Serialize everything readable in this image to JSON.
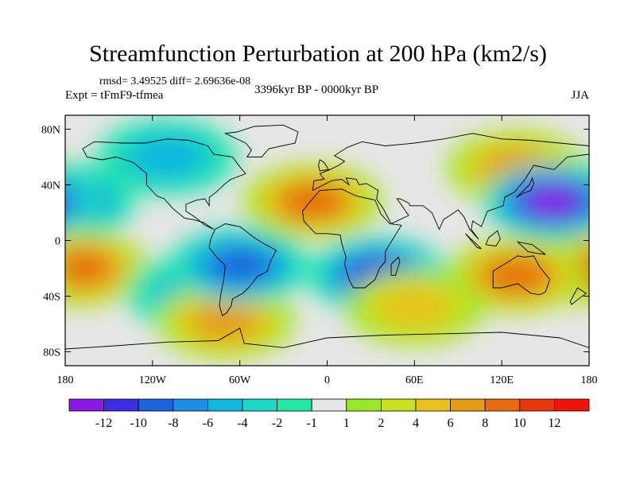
{
  "chart_data": {
    "type": "heatmap",
    "title": "Streamfunction Perturbation at 200 hPa (km2/s)",
    "stats_text": "rmsd= 3.49525 diff= 2.69636e-08",
    "left_label": "Expt = tFmF9-tfmea",
    "center_label": "3396kyr BP - 0000kyr BP",
    "right_label": "JJA",
    "xlim": [
      -180,
      180
    ],
    "ylim": [
      -90,
      90
    ],
    "x_ticks": [
      {
        "value": -180,
        "label": "180"
      },
      {
        "value": -120,
        "label": "120W"
      },
      {
        "value": -60,
        "label": "60W"
      },
      {
        "value": 0,
        "label": "0"
      },
      {
        "value": 60,
        "label": "60E"
      },
      {
        "value": 120,
        "label": "120E"
      },
      {
        "value": 180,
        "label": "180"
      }
    ],
    "y_ticks": [
      {
        "value": 80,
        "label": "80N"
      },
      {
        "value": 40,
        "label": "40N"
      },
      {
        "value": 0,
        "label": "0"
      },
      {
        "value": -40,
        "label": "40S"
      },
      {
        "value": -80,
        "label": "80S"
      }
    ],
    "colorbar": {
      "levels": [
        -12,
        -10,
        -8,
        -6,
        -4,
        -2,
        -1,
        1,
        2,
        4,
        6,
        8,
        10,
        12
      ],
      "labels": [
        "-12",
        "-10",
        "-8",
        "-6",
        "-4",
        "-2",
        "-1",
        "1",
        "2",
        "4",
        "6",
        "8",
        "10",
        "12"
      ],
      "colors": [
        "#8c1ae6",
        "#3c2ee0",
        "#1f63de",
        "#1e8ee6",
        "#10b6de",
        "#1ed6c6",
        "#22e8a4",
        "#e6e6e6",
        "#9ae62a",
        "#cbe01f",
        "#e6c21b",
        "#e69a16",
        "#e66a10",
        "#e6360c",
        "#f0140c"
      ]
    },
    "field_anomalies": [
      {
        "lon": -180,
        "lat": 28,
        "value": -9,
        "region": "central North Pacific"
      },
      {
        "lon": -170,
        "lat": -20,
        "value": 9,
        "region": "South Pacific"
      },
      {
        "lon": -110,
        "lat": 60,
        "value": -5,
        "region": "Canada"
      },
      {
        "lon": -90,
        "lat": -38,
        "value": -5,
        "region": "southeast Pacific"
      },
      {
        "lon": -70,
        "lat": -58,
        "value": 7,
        "region": "Patagonia"
      },
      {
        "lon": -60,
        "lat": -18,
        "value": -8,
        "region": "South America"
      },
      {
        "lon": -10,
        "lat": 28,
        "value": 9,
        "region": "North Atlantic / Sahara"
      },
      {
        "lon": 35,
        "lat": -25,
        "value": -11,
        "region": "southern Africa"
      },
      {
        "lon": 130,
        "lat": 52,
        "value": 6,
        "region": "Siberia"
      },
      {
        "lon": 155,
        "lat": 28,
        "value": -12,
        "region": "Northwest Pacific"
      },
      {
        "lon": 130,
        "lat": -25,
        "value": 8,
        "region": "Australia"
      },
      {
        "lon": 60,
        "lat": -48,
        "value": 4,
        "region": "southern Indian Ocean"
      }
    ]
  }
}
